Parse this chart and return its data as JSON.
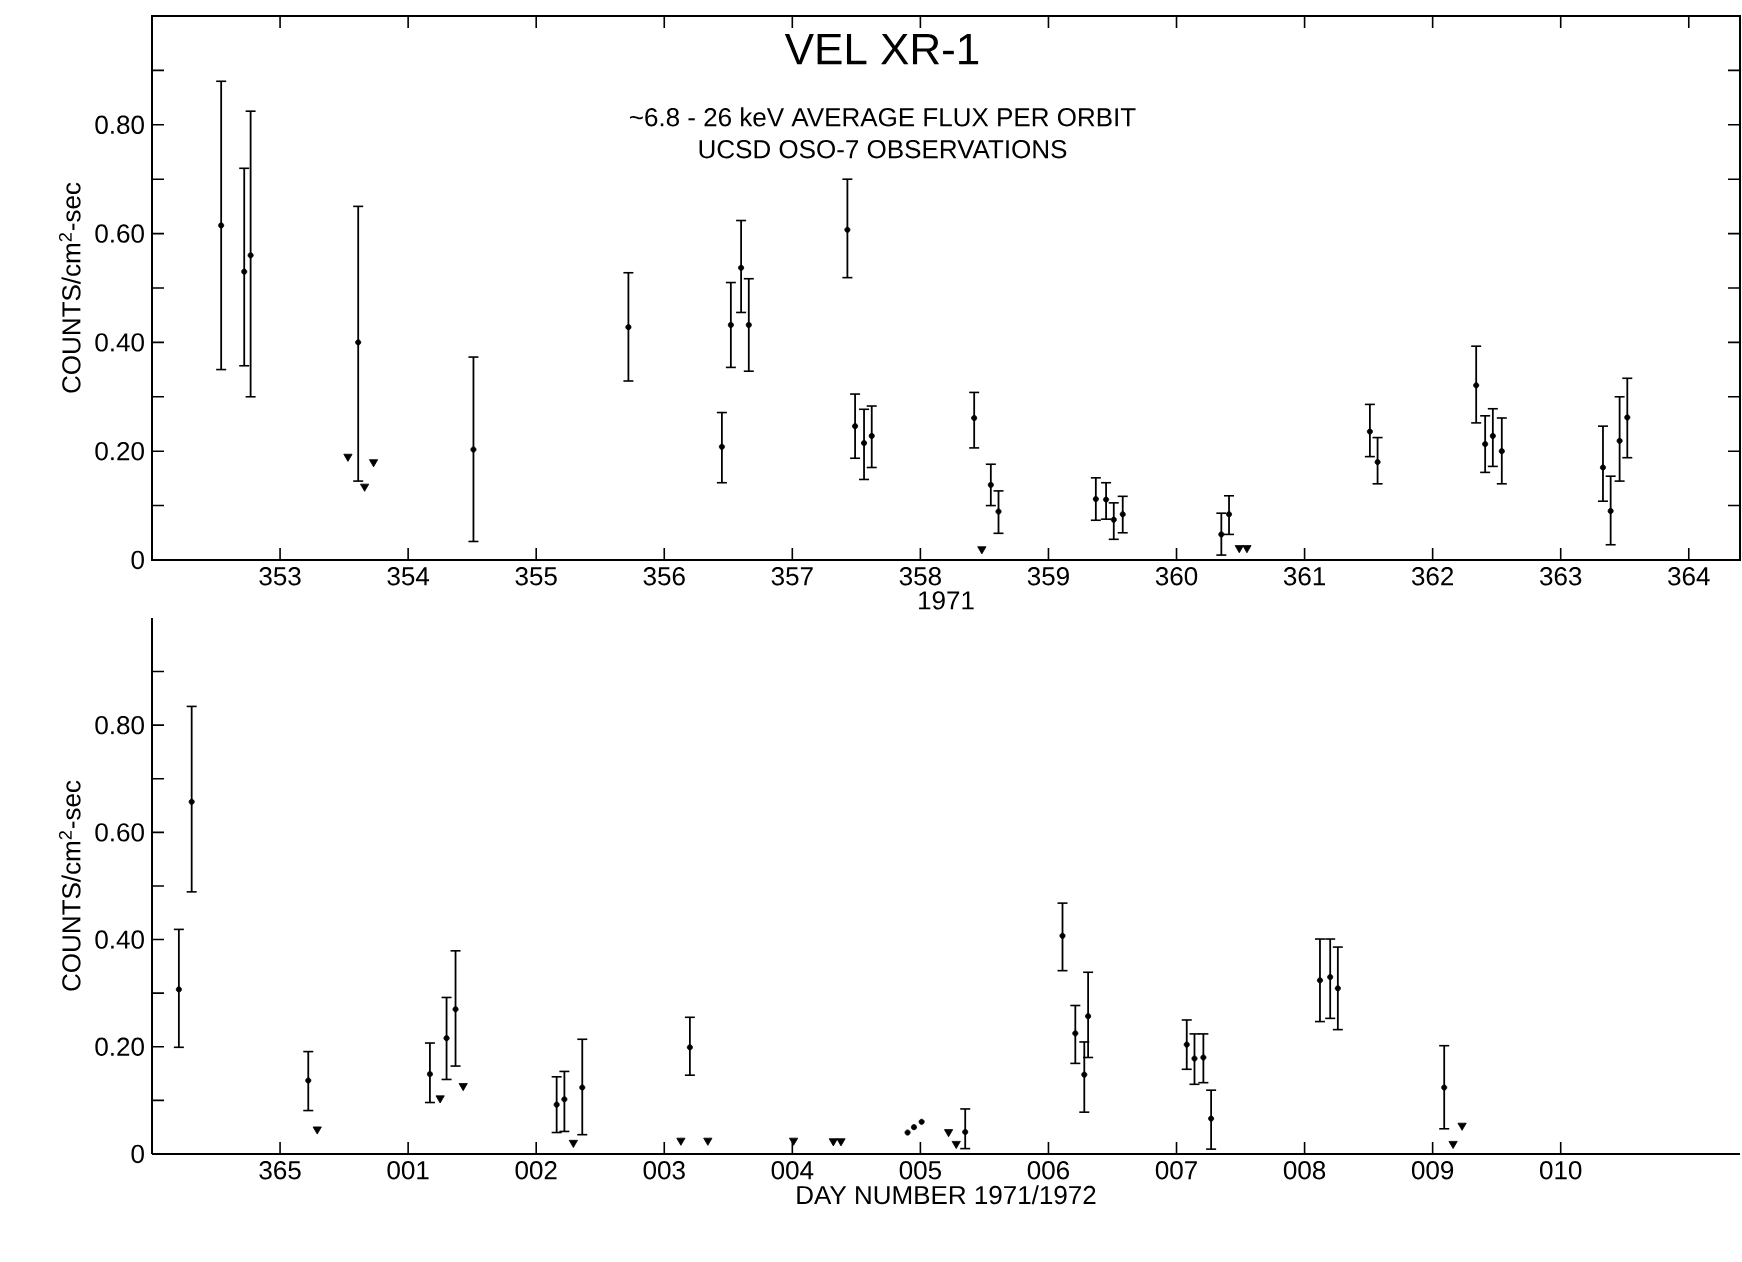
{
  "chart_data": [
    {
      "type": "scatter",
      "title": "VEL  XR-1",
      "subtitle": "~6.8 - 26 keV AVERAGE FLUX PER ORBIT",
      "annotations": [
        "UCSD OSO-7 OBSERVATIONS"
      ],
      "xlabel": "1971",
      "ylabel": "COUNTS/cm$^{2}$-sec",
      "xlim": [
        352,
        364.4
      ],
      "ylim": [
        0,
        1.0
      ],
      "xticks": [
        353,
        354,
        355,
        356,
        357,
        358,
        359,
        360,
        361,
        362,
        363,
        364
      ],
      "yticks": [
        0,
        {
          "value": 0.1,
          "label": null
        },
        {
          "value": 0.2,
          "label": "0.20"
        },
        {
          "value": 0.3,
          "label": null
        },
        {
          "value": 0.4,
          "label": "0.40"
        },
        {
          "value": 0.5,
          "label": null
        },
        {
          "value": 0.6,
          "label": "0.60"
        },
        {
          "value": 0.7,
          "label": null
        },
        {
          "value": 0.8,
          "label": "0.80"
        },
        {
          "value": 0.9,
          "label": null
        }
      ],
      "series": [
        {
          "color": "#000000",
          "marker": "circle",
          "x": [
            352.54,
            352.72,
            352.77,
            353.61,
            354.51,
            355.72,
            356.45,
            356.52,
            356.6,
            356.66,
            357.43,
            357.49,
            357.56,
            357.62,
            358.42,
            358.55,
            358.61,
            359.37,
            359.45,
            359.51,
            359.58,
            360.35,
            360.41,
            361.51,
            361.57,
            362.34,
            362.41,
            362.47,
            362.54,
            363.33,
            363.39,
            363.46,
            363.52
          ],
          "values": [
            0.615,
            0.53,
            0.56,
            0.4,
            0.203,
            0.428,
            0.208,
            0.432,
            0.537,
            0.432,
            0.607,
            0.246,
            0.215,
            0.228,
            0.261,
            0.138,
            0.089,
            0.112,
            0.111,
            0.074,
            0.084,
            0.047,
            0.084,
            0.236,
            0.18,
            0.321,
            0.213,
            0.228,
            0.2,
            0.17,
            0.09,
            0.219,
            0.262
          ],
          "errors": [
            [
              0.35,
              0.88
            ],
            [
              0.357,
              0.72
            ],
            [
              0.3,
              0.825
            ],
            [
              0.145,
              0.65
            ],
            [
              0.034,
              0.373
            ],
            [
              0.329,
              0.528
            ],
            [
              0.142,
              0.271
            ],
            [
              0.354,
              0.51
            ],
            [
              0.455,
              0.624
            ],
            [
              0.347,
              0.517
            ],
            [
              0.519,
              0.7
            ],
            [
              0.187,
              0.305
            ],
            [
              0.148,
              0.277
            ],
            [
              0.17,
              0.283
            ],
            [
              0.206,
              0.308
            ],
            [
              0.1,
              0.176
            ],
            [
              0.049,
              0.127
            ],
            [
              0.073,
              0.151
            ],
            [
              0.075,
              0.142
            ],
            [
              0.038,
              0.105
            ],
            [
              0.05,
              0.117
            ],
            [
              0.009,
              0.086
            ],
            [
              0.047,
              0.118
            ],
            [
              0.19,
              0.286
            ],
            [
              0.14,
              0.225
            ],
            [
              0.252,
              0.393
            ],
            [
              0.161,
              0.265
            ],
            [
              0.172,
              0.278
            ],
            [
              0.14,
              0.261
            ],
            [
              0.108,
              0.246
            ],
            [
              0.028,
              0.154
            ],
            [
              0.145,
              0.3
            ],
            [
              0.188,
              0.334
            ]
          ]
        },
        {
          "color": "#000000",
          "marker": "triangle",
          "x": [
            353.53,
            353.66,
            353.73,
            358.48,
            360.49,
            360.55
          ],
          "values": [
            0.19,
            0.135,
            0.18,
            0.02,
            0.022,
            0.022
          ]
        }
      ]
    },
    {
      "type": "scatter",
      "xlabel": "DAY NUMBER 1971/1972",
      "ylabel": "COUNTS/cm$^{2}$-sec",
      "xlim": [
        "1971-12-30T00:00",
        "1972-01-11T09:36"
      ],
      "ylim": [
        0,
        1.0
      ],
      "xticks": [
        {
          "value": "1971-12-31",
          "label": "365"
        },
        {
          "value": "1972-01-01",
          "label": "001"
        },
        {
          "value": "1972-01-02",
          "label": "002"
        },
        {
          "value": "1972-01-03",
          "label": "003"
        },
        {
          "value": "1972-01-04",
          "label": "004"
        },
        {
          "value": "1972-01-05",
          "label": "005"
        },
        {
          "value": "1972-01-06",
          "label": "006"
        },
        {
          "value": "1972-01-07",
          "label": "007"
        },
        {
          "value": "1972-01-08",
          "label": "008"
        },
        {
          "value": "1972-01-09",
          "label": "009"
        },
        {
          "value": "1972-01-10",
          "label": "010"
        }
      ],
      "yticks": [
        0,
        {
          "value": 0.1,
          "label": null
        },
        {
          "value": 0.2,
          "label": "0.20"
        },
        {
          "value": 0.3,
          "label": null
        },
        {
          "value": 0.4,
          "label": "0.40"
        },
        {
          "value": 0.5,
          "label": null
        },
        {
          "value": 0.6,
          "label": "0.60"
        },
        {
          "value": 0.7,
          "label": null
        },
        {
          "value": 0.8,
          "label": "0.80"
        },
        {
          "value": 0.9,
          "label": null
        }
      ],
      "series": [
        {
          "color": "#000000",
          "marker": "circle",
          "x": [
            "1971-12-30T05:02",
            "1971-12-30T07:26",
            "1971-12-31T05:17",
            "1972-01-01T04:05",
            "1972-01-01T07:12",
            "1972-01-01T08:53",
            "1972-01-02T03:50",
            "1972-01-02T05:17",
            "1972-01-02T08:38",
            "1972-01-03T04:48",
            "1972-01-05T08:24",
            "1972-01-06T02:38",
            "1972-01-06T05:02",
            "1972-01-06T06:43",
            "1972-01-06T07:26",
            "1972-01-07T01:55",
            "1972-01-07T03:22",
            "1972-01-07T05:02",
            "1972-01-07T06:29",
            "1972-01-08T02:53",
            "1972-01-08T04:48",
            "1972-01-08T06:14",
            "1972-01-09T02:10"
          ],
          "values": [
            0.307,
            0.657,
            0.137,
            0.149,
            0.216,
            0.27,
            0.092,
            0.102,
            0.124,
            0.199,
            0.041,
            0.407,
            0.225,
            0.148,
            0.257,
            0.204,
            0.178,
            0.18,
            0.066,
            0.324,
            0.33,
            0.309,
            0.124
          ],
          "errors": [
            [
              0.199,
              0.419
            ],
            [
              0.489,
              0.835
            ],
            [
              0.081,
              0.191
            ],
            [
              0.096,
              0.207
            ],
            [
              0.139,
              0.292
            ],
            [
              0.164,
              0.379
            ],
            [
              0.04,
              0.144
            ],
            [
              0.042,
              0.154
            ],
            [
              0.036,
              0.214
            ],
            [
              0.147,
              0.255
            ],
            [
              0.01,
              0.084
            ],
            [
              0.342,
              0.468
            ],
            [
              0.169,
              0.277
            ],
            [
              0.078,
              0.209
            ],
            [
              0.18,
              0.339
            ],
            [
              0.158,
              0.25
            ],
            [
              0.13,
              0.224
            ],
            [
              0.133,
              0.224
            ],
            [
              0.009,
              0.119
            ],
            [
              0.247,
              0.401
            ],
            [
              0.253,
              0.401
            ],
            [
              0.232,
              0.386
            ],
            [
              0.047,
              0.202
            ]
          ]
        },
        {
          "color": "#000000",
          "marker": "triangle",
          "x": [
            "1971-12-31T06:58",
            "1972-01-01T06:00",
            "1972-01-01T10:19",
            "1972-01-02T06:58",
            "1972-01-03T03:07",
            "1972-01-03T08:10",
            "1972-01-04T00:14",
            "1972-01-04T07:41",
            "1972-01-04T09:07",
            "1972-01-05T05:17",
            "1972-01-05T06:43",
            "1972-01-09T03:50",
            "1972-01-09T05:31"
          ],
          "values": [
            0.046,
            0.104,
            0.127,
            0.021,
            0.025,
            0.025,
            0.025,
            0.024,
            0.024,
            0.041,
            0.019,
            0.019,
            0.053
          ]
        },
        {
          "color": "#000000",
          "marker": "circle",
          "x": [
            "1972-01-04T21:36",
            "1972-01-04T22:48",
            "1972-01-05T00:14"
          ],
          "values": [
            0.04,
            0.05,
            0.06
          ]
        }
      ]
    }
  ]
}
